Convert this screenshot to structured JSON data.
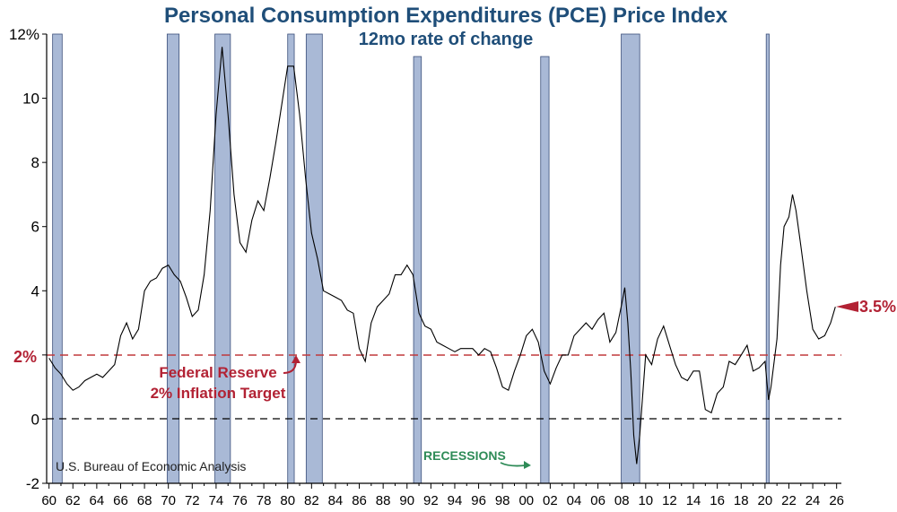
{
  "chart_data": {
    "type": "line",
    "title": "Personal Consumption Expenditures (PCE) Price Index",
    "subtitle": "12mo rate of change",
    "source": "U.S. Bureau of Economic Analysis",
    "y_unit": "%",
    "ylim": [
      -2,
      12
    ],
    "y_ticks": [
      -2,
      0,
      2,
      4,
      6,
      8,
      10,
      12
    ],
    "y_tick_labels": [
      "-2",
      "0",
      "",
      "4",
      "6",
      "8",
      "10",
      "12%"
    ],
    "xlim": [
      1959.8,
      2026.4
    ],
    "x_tick_labels": [
      "60",
      "62",
      "64",
      "66",
      "68",
      "70",
      "72",
      "74",
      "76",
      "78",
      "80",
      "82",
      "84",
      "86",
      "88",
      "90",
      "92",
      "94",
      "96",
      "98",
      "00",
      "02",
      "04",
      "06",
      "08",
      "10",
      "12",
      "14",
      "16",
      "18",
      "20",
      "22",
      "24",
      "26"
    ],
    "grid": false,
    "reference_lines": [
      {
        "y": 0,
        "style": "dashed",
        "color": "#000000"
      },
      {
        "y": 2,
        "style": "dashed",
        "color": "#c0393b",
        "label": "2%"
      }
    ],
    "annotations": {
      "fed_target": [
        "Federal Reserve",
        "2% Inflation Target"
      ],
      "recessions": "RECESSIONS",
      "latest_value": "3.5%"
    },
    "recessions": [
      [
        1960.3,
        1961.1
      ],
      [
        1969.9,
        1970.9
      ],
      [
        1973.9,
        1975.2
      ],
      [
        1980.0,
        1980.55
      ],
      [
        1981.55,
        1982.9
      ],
      [
        1990.55,
        1991.2
      ],
      [
        2001.2,
        2001.9
      ],
      [
        2007.95,
        2009.5
      ],
      [
        2020.1,
        2020.35
      ]
    ],
    "series": [
      {
        "color": "#000000",
        "x": [
          1960.0,
          1960.5,
          1961.0,
          1961.5,
          1962.0,
          1962.5,
          1963.0,
          1963.5,
          1964.0,
          1964.5,
          1965.0,
          1965.5,
          1966.0,
          1966.5,
          1967.0,
          1967.5,
          1968.0,
          1968.5,
          1969.0,
          1969.5,
          1970.0,
          1970.5,
          1971.0,
          1971.5,
          1972.0,
          1972.5,
          1973.0,
          1973.5,
          1974.0,
          1974.5,
          1975.0,
          1975.5,
          1976.0,
          1976.5,
          1977.0,
          1977.5,
          1978.0,
          1978.5,
          1979.0,
          1979.5,
          1980.0,
          1980.5,
          1981.0,
          1981.5,
          1982.0,
          1982.5,
          1983.0,
          1983.5,
          1984.0,
          1984.5,
          1985.0,
          1985.5,
          1986.0,
          1986.5,
          1987.0,
          1987.5,
          1988.0,
          1988.5,
          1989.0,
          1989.5,
          1990.0,
          1990.5,
          1991.0,
          1991.5,
          1992.0,
          1992.5,
          1993.0,
          1993.5,
          1994.0,
          1994.5,
          1995.0,
          1995.5,
          1996.0,
          1996.5,
          1997.0,
          1997.5,
          1998.0,
          1998.5,
          1999.0,
          1999.5,
          2000.0,
          2000.5,
          2001.0,
          2001.5,
          2002.0,
          2002.5,
          2003.0,
          2003.5,
          2004.0,
          2004.5,
          2005.0,
          2005.5,
          2006.0,
          2006.5,
          2007.0,
          2007.5,
          2008.0,
          2008.25,
          2008.5,
          2008.75,
          2009.0,
          2009.25,
          2009.5,
          2010.0,
          2010.5,
          2011.0,
          2011.5,
          2012.0,
          2012.5,
          2013.0,
          2013.5,
          2014.0,
          2014.5,
          2015.0,
          2015.5,
          2016.0,
          2016.5,
          2017.0,
          2017.5,
          2018.0,
          2018.5,
          2019.0,
          2019.5,
          2020.0,
          2020.3,
          2020.5,
          2021.0,
          2021.3,
          2021.6,
          2022.0,
          2022.3,
          2022.6,
          2023.0,
          2023.5,
          2024.0,
          2024.5,
          2025.0,
          2025.5,
          2025.9
        ],
        "values": [
          1.9,
          1.6,
          1.4,
          1.1,
          0.9,
          1.0,
          1.2,
          1.3,
          1.4,
          1.3,
          1.5,
          1.7,
          2.6,
          3.0,
          2.5,
          2.8,
          4.0,
          4.3,
          4.4,
          4.7,
          4.8,
          4.5,
          4.3,
          3.8,
          3.2,
          3.4,
          4.5,
          6.5,
          9.5,
          11.6,
          9.5,
          7.0,
          5.5,
          5.2,
          6.2,
          6.8,
          6.5,
          7.5,
          8.6,
          9.8,
          11.0,
          11.0,
          9.5,
          7.5,
          5.8,
          5.0,
          4.0,
          3.9,
          3.8,
          3.7,
          3.4,
          3.3,
          2.2,
          1.8,
          3.0,
          3.5,
          3.7,
          3.9,
          4.5,
          4.5,
          4.8,
          4.5,
          3.3,
          2.9,
          2.8,
          2.4,
          2.3,
          2.2,
          2.1,
          2.2,
          2.2,
          2.2,
          2.0,
          2.2,
          2.1,
          1.6,
          1.0,
          0.9,
          1.5,
          2.0,
          2.6,
          2.8,
          2.4,
          1.5,
          1.1,
          1.6,
          2.0,
          2.0,
          2.6,
          2.8,
          3.0,
          2.8,
          3.1,
          3.3,
          2.4,
          2.7,
          3.6,
          4.1,
          3.0,
          1.5,
          -0.5,
          -1.4,
          -0.5,
          2.0,
          1.7,
          2.5,
          2.9,
          2.3,
          1.7,
          1.3,
          1.2,
          1.5,
          1.5,
          0.3,
          0.2,
          0.8,
          1.0,
          1.8,
          1.7,
          2.0,
          2.3,
          1.5,
          1.6,
          1.8,
          0.6,
          1.0,
          2.5,
          4.8,
          6.0,
          6.3,
          7.0,
          6.5,
          5.4,
          4.0,
          2.8,
          2.5,
          2.6,
          3.0,
          3.5
        ]
      }
    ]
  }
}
